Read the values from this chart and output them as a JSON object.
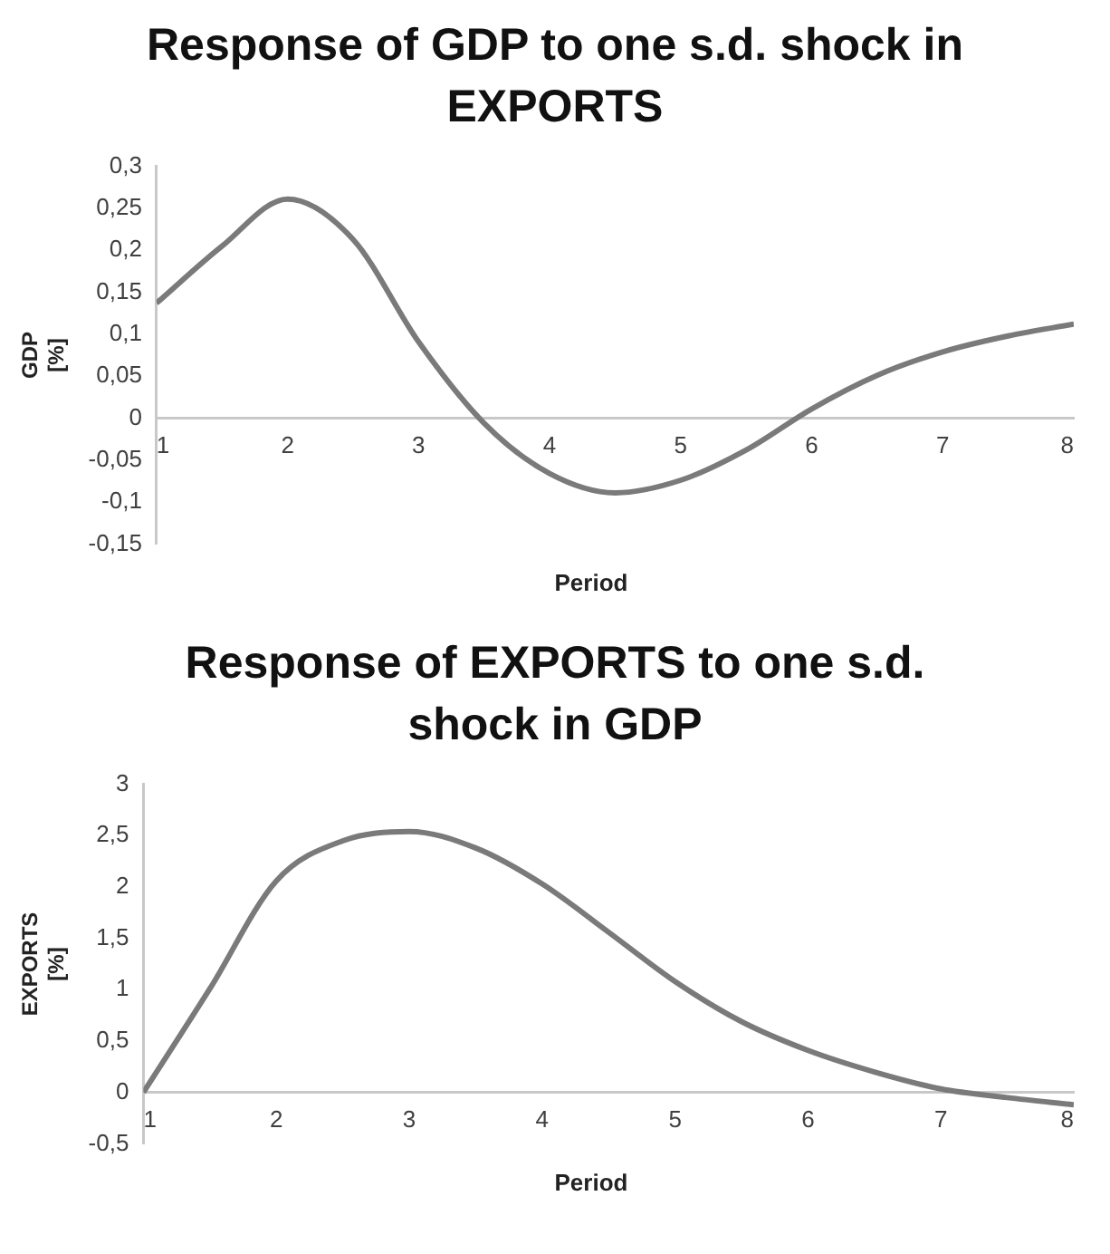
{
  "chart_data": [
    {
      "type": "line",
      "title": "Response of GDP to one s.d. shock in EXPORTS",
      "xlabel": "Period",
      "ylabel": "GDP [%]",
      "x": [
        1,
        1.5,
        2,
        2.5,
        3,
        3.5,
        4,
        4.5,
        5,
        5.5,
        6,
        6.5,
        7,
        7.5,
        8
      ],
      "series": [
        {
          "color": "#7a7a7a",
          "values": [
            0.137,
            0.205,
            0.261,
            0.213,
            0.091,
            -0.006,
            -0.066,
            -0.089,
            -0.074,
            -0.038,
            0.011,
            0.051,
            0.079,
            0.098,
            0.112
          ]
        }
      ],
      "xlim": [
        1,
        8
      ],
      "xticks": [
        1,
        2,
        3,
        4,
        5,
        6,
        7,
        8
      ],
      "ylim": [
        -0.15,
        0.3
      ],
      "yticks": [
        {
          "value": -0.15,
          "label": "-0,15"
        },
        {
          "value": -0.1,
          "label": "-0,1"
        },
        {
          "value": -0.05,
          "label": "-0,05"
        },
        0,
        {
          "value": 0.05,
          "label": "0,05"
        },
        {
          "value": 0.1,
          "label": "0,1"
        },
        {
          "value": 0.15,
          "label": "0,15"
        },
        {
          "value": 0.2,
          "label": "0,2"
        },
        {
          "value": 0.25,
          "label": "0,25"
        },
        {
          "value": 0.3,
          "label": "0,3"
        }
      ],
      "grid": false,
      "legend": false,
      "marker": "none",
      "line_style": "solid"
    },
    {
      "type": "line",
      "title": "Response of EXPORTS to one s.d. shock in GDP",
      "xlabel": "Period",
      "ylabel": "EXPORTS [%]",
      "x": [
        1,
        1.5,
        2,
        2.5,
        3,
        3.5,
        4,
        4.5,
        5,
        5.5,
        6,
        6.5,
        7,
        7.5,
        8
      ],
      "series": [
        {
          "color": "#7a7a7a",
          "values": [
            0,
            1.01,
            2.06,
            2.45,
            2.54,
            2.38,
            2.03,
            1.56,
            1.08,
            0.69,
            0.41,
            0.2,
            0.035,
            -0.05,
            -0.12
          ]
        }
      ],
      "xlim": [
        1,
        8
      ],
      "xticks": [
        1,
        2,
        3,
        4,
        5,
        6,
        7,
        8
      ],
      "ylim": [
        -0.5,
        3
      ],
      "yticks": [
        {
          "value": -0.5,
          "label": "-0,5"
        },
        0,
        {
          "value": 0.5,
          "label": "0,5"
        },
        1,
        {
          "value": 1.5,
          "label": "1,5"
        },
        2,
        {
          "value": 2.5,
          "label": "2,5"
        },
        3
      ],
      "grid": false,
      "legend": false,
      "marker": "none",
      "line_style": "solid"
    }
  ]
}
